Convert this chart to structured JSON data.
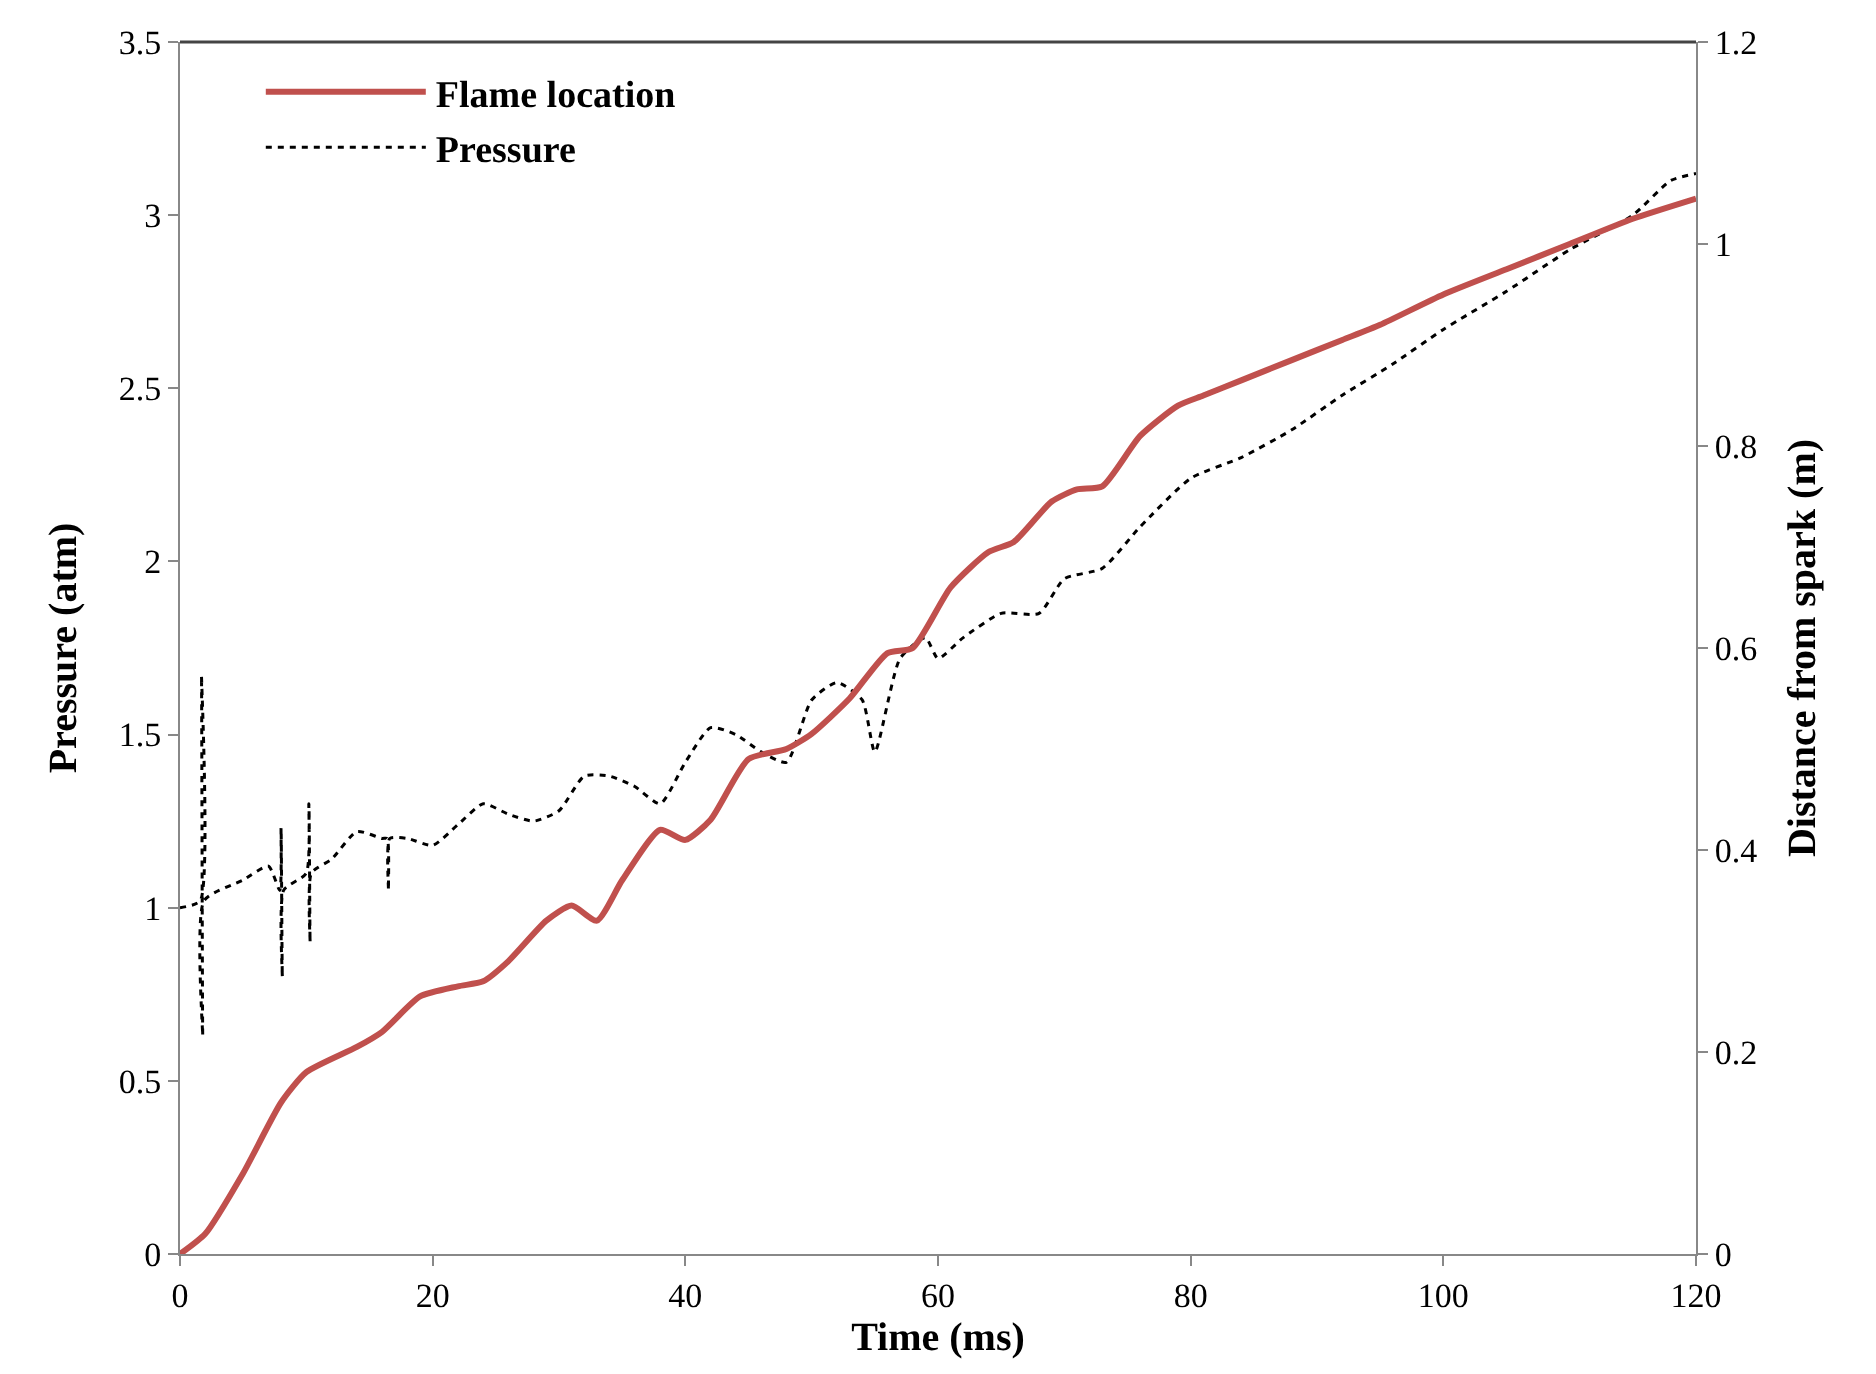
{
  "chart_data": {
    "type": "line",
    "xlabel": "Time (ms)",
    "ylabel": "Pressure (atm)",
    "y2label": "Distance from spark (m)",
    "xlim": [
      0,
      120
    ],
    "xticks": [
      0,
      20,
      40,
      60,
      80,
      100,
      120
    ],
    "ylim": [
      0,
      3.5
    ],
    "yticks": [
      0,
      0.5,
      1,
      1.5,
      2,
      2.5,
      3,
      3.5
    ],
    "y2lim": [
      0,
      1.2
    ],
    "y2ticks": [
      0,
      0.2,
      0.4,
      0.6,
      0.8,
      1,
      1.2
    ],
    "legend": "top left",
    "marker": "none",
    "series": [
      {
        "name": "Flame location",
        "color": "#c0504d",
        "axis": "y2",
        "line_style": "solid",
        "x": [
          0,
          2,
          5,
          8,
          10,
          14,
          16,
          19,
          22,
          24,
          26,
          29,
          31,
          33,
          35,
          38,
          40,
          42,
          45,
          48,
          50,
          53,
          56,
          58,
          61,
          64,
          66,
          69,
          71,
          73,
          76,
          79,
          81,
          84,
          88,
          92,
          95,
          100,
          105,
          110,
          115,
          120
        ],
        "values": [
          0,
          0.02,
          0.08,
          0.15,
          0.18,
          0.205,
          0.22,
          0.255,
          0.265,
          0.27,
          0.29,
          0.33,
          0.345,
          0.33,
          0.37,
          0.42,
          0.41,
          0.43,
          0.49,
          0.5,
          0.515,
          0.55,
          0.595,
          0.6,
          0.66,
          0.695,
          0.705,
          0.745,
          0.757,
          0.76,
          0.81,
          0.84,
          0.85,
          0.865,
          0.885,
          0.905,
          0.92,
          0.95,
          0.975,
          1,
          1.025,
          1.045
        ]
      },
      {
        "name": "Pressure",
        "color": "#000000",
        "axis": "y",
        "line_style": "dotted",
        "x": [
          0,
          1.6,
          1.7,
          1.8,
          1.9,
          5,
          7,
          7.9,
          8,
          8.1,
          8.2,
          10,
          10.2,
          10.3,
          10.4,
          12,
          14,
          16,
          16.4,
          16.5,
          16.6,
          18,
          20,
          22,
          24,
          26,
          28,
          30,
          32,
          34,
          36,
          38,
          40,
          42,
          44,
          46,
          48,
          50,
          52,
          54,
          55,
          57,
          59,
          60,
          62,
          65,
          68,
          70,
          73,
          76,
          80,
          84,
          88,
          92,
          96,
          100,
          105,
          110,
          115,
          118,
          120
        ],
        "values": [
          1,
          1.02,
          1.67,
          0.63,
          1.02,
          1.08,
          1.12,
          1.05,
          1.23,
          0.8,
          1.05,
          1.1,
          1.3,
          0.9,
          1.1,
          1.14,
          1.22,
          1.2,
          1.2,
          1.05,
          1.2,
          1.2,
          1.18,
          1.24,
          1.3,
          1.27,
          1.25,
          1.28,
          1.38,
          1.38,
          1.35,
          1.3,
          1.42,
          1.52,
          1.5,
          1.45,
          1.42,
          1.6,
          1.65,
          1.6,
          1.45,
          1.72,
          1.78,
          1.72,
          1.78,
          1.85,
          1.85,
          1.95,
          1.98,
          2.1,
          2.24,
          2.3,
          2.38,
          2.48,
          2.57,
          2.67,
          2.78,
          2.9,
          3,
          3.1,
          3.12
        ]
      }
    ]
  }
}
